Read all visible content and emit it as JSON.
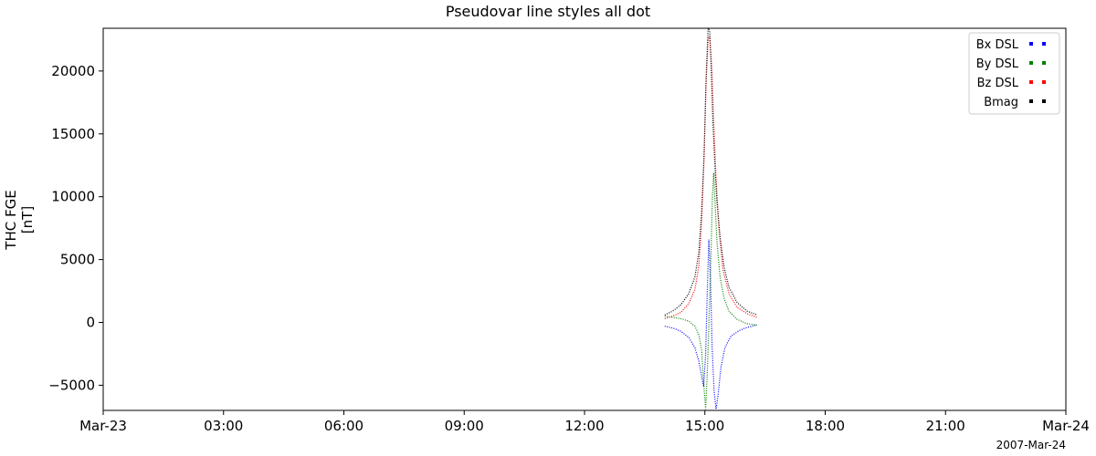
{
  "chart_data": {
    "type": "line",
    "title": "Pseudovar line styles all dot",
    "ylabel_lines": [
      "THC FGE",
      "[nT]"
    ],
    "date_label": "2007-Mar-24",
    "x_axis": {
      "unit": "hours since 2007-03-23 00:00",
      "range": [
        0,
        24
      ],
      "ticks": [
        {
          "value": 0,
          "label": "Mar-23"
        },
        {
          "value": 3,
          "label": "03:00"
        },
        {
          "value": 6,
          "label": "06:00"
        },
        {
          "value": 9,
          "label": "09:00"
        },
        {
          "value": 12,
          "label": "12:00"
        },
        {
          "value": 15,
          "label": "15:00"
        },
        {
          "value": 18,
          "label": "18:00"
        },
        {
          "value": 21,
          "label": "21:00"
        },
        {
          "value": 24,
          "label": "Mar-24"
        }
      ]
    },
    "y_axis": {
      "range": [
        -7000,
        23400
      ],
      "ticks": [
        {
          "value": -5000,
          "label": "−5000"
        },
        {
          "value": 0,
          "label": "0"
        },
        {
          "value": 5000,
          "label": "5000"
        },
        {
          "value": 10000,
          "label": "10000"
        },
        {
          "value": 15000,
          "label": "15000"
        },
        {
          "value": 20000,
          "label": "20000"
        }
      ]
    },
    "grid": false,
    "legend_position": "top-right",
    "line_style": "dot",
    "series": [
      {
        "name": "Bx DSL",
        "color": "#0000ff",
        "x": [
          14.0,
          14.2,
          14.4,
          14.6,
          14.75,
          14.85,
          14.92,
          14.97,
          15.02,
          15.06,
          15.1,
          15.14,
          15.18,
          15.23,
          15.28,
          15.33,
          15.4,
          15.5,
          15.65,
          15.85,
          16.05,
          16.3
        ],
        "y": [
          -300,
          -450,
          -700,
          -1200,
          -2000,
          -3100,
          -4300,
          -5100,
          -2500,
          2500,
          6600,
          3500,
          -2000,
          -5500,
          -6900,
          -5800,
          -3600,
          -2000,
          -1100,
          -650,
          -400,
          -200
        ]
      },
      {
        "name": "By DSL",
        "color": "#008000",
        "x": [
          14.0,
          14.2,
          14.4,
          14.6,
          14.75,
          14.85,
          14.92,
          14.97,
          15.02,
          15.06,
          15.1,
          15.15,
          15.19,
          15.22,
          15.25,
          15.3,
          15.38,
          15.48,
          15.6,
          15.8,
          16.05,
          16.3
        ],
        "y": [
          500,
          400,
          300,
          100,
          -300,
          -1000,
          -2200,
          -4800,
          -6900,
          -4000,
          -200,
          5000,
          10200,
          11900,
          9800,
          6500,
          3600,
          1900,
          900,
          250,
          -100,
          -200
        ]
      },
      {
        "name": "Bz DSL",
        "color": "#ff0000",
        "x": [
          14.0,
          14.2,
          14.4,
          14.6,
          14.75,
          14.85,
          14.92,
          14.98,
          15.03,
          15.08,
          15.12,
          15.17,
          15.22,
          15.28,
          15.35,
          15.45,
          15.6,
          15.8,
          16.05,
          16.3
        ],
        "y": [
          300,
          500,
          800,
          1500,
          2600,
          4500,
          8000,
          13000,
          19000,
          22500,
          22800,
          20500,
          16000,
          11500,
          7500,
          4200,
          2300,
          1200,
          700,
          400
        ]
      },
      {
        "name": "Bmag",
        "color": "#000000",
        "x": [
          14.0,
          14.2,
          14.4,
          14.6,
          14.75,
          14.85,
          14.92,
          14.98,
          15.03,
          15.08,
          15.12,
          15.16,
          15.2,
          15.25,
          15.3,
          15.38,
          15.48,
          15.6,
          15.8,
          16.05,
          16.3
        ],
        "y": [
          600,
          900,
          1400,
          2300,
          3600,
          5600,
          8800,
          13500,
          19500,
          23400,
          23200,
          20000,
          16000,
          12500,
          9700,
          6800,
          4400,
          2800,
          1600,
          900,
          600
        ]
      }
    ]
  }
}
